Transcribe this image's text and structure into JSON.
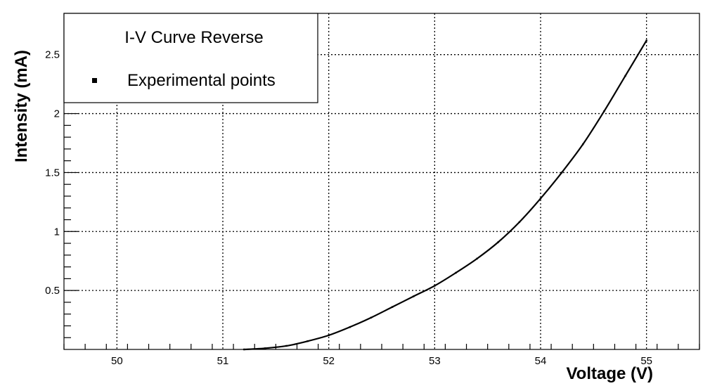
{
  "chart_data": {
    "type": "line",
    "title": "I-V Curve Reverse",
    "xlabel": "Voltage (V)",
    "ylabel": "Intensity (mA)",
    "xlim": [
      49.5,
      55.5
    ],
    "ylim": [
      0,
      2.85
    ],
    "x_ticks": [
      50,
      51,
      52,
      53,
      54,
      55
    ],
    "x_tick_labels": [
      "50",
      "51",
      "52",
      "53",
      "54",
      "55"
    ],
    "y_ticks": [
      0.5,
      1,
      1.5,
      2,
      2.5
    ],
    "y_tick_labels": [
      "0.5",
      "1",
      "1.5",
      "2",
      "2.5"
    ],
    "grid": true,
    "legend_position": "top-left",
    "series": [
      {
        "name": "Experimental points",
        "marker": "square",
        "color": "#000000",
        "x": [
          51.2,
          51.4,
          51.6,
          51.8,
          52.0,
          52.2,
          52.4,
          52.6,
          52.8,
          53.0,
          53.2,
          53.4,
          53.6,
          53.8,
          54.0,
          54.2,
          54.4,
          54.6,
          54.8,
          55.0
        ],
        "y": [
          0.0,
          0.01,
          0.03,
          0.07,
          0.12,
          0.19,
          0.27,
          0.36,
          0.45,
          0.54,
          0.65,
          0.77,
          0.91,
          1.08,
          1.28,
          1.5,
          1.74,
          2.02,
          2.32,
          2.62
        ]
      }
    ]
  }
}
